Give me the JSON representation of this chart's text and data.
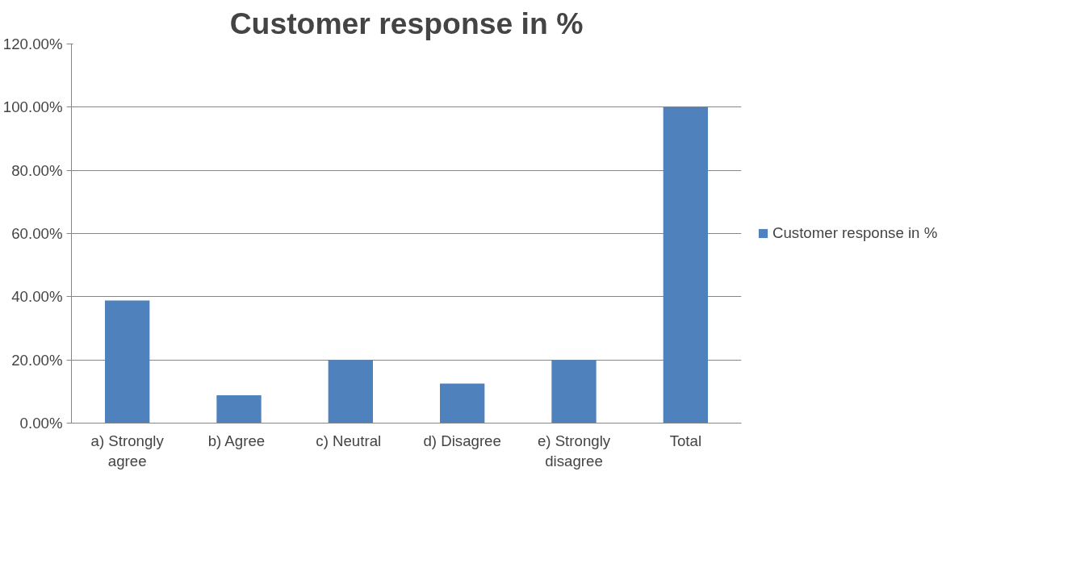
{
  "chart_data": {
    "type": "bar",
    "title": "Customer response in %",
    "categories": [
      "a) Strongly agree",
      "b)  Agree",
      "c)  Neutral",
      "d) Disagree",
      "e) Strongly disagree",
      "Total"
    ],
    "series": [
      {
        "name": "Customer response in %",
        "color": "#4f81bd",
        "values": [
          38.8,
          8.8,
          20,
          12.5,
          20,
          100
        ]
      }
    ],
    "ylim": [
      0,
      120
    ],
    "yticks": [
      {
        "value": 0,
        "label": "0.00%"
      },
      {
        "value": 20,
        "label": "20.00%"
      },
      {
        "value": 40,
        "label": "40.00%"
      },
      {
        "value": 60,
        "label": "60.00%"
      },
      {
        "value": 80,
        "label": "80.00%"
      },
      {
        "value": 100,
        "label": "100.00%"
      },
      {
        "value": 120,
        "label": "120.00%"
      }
    ],
    "grid": "y",
    "legend": "right"
  }
}
